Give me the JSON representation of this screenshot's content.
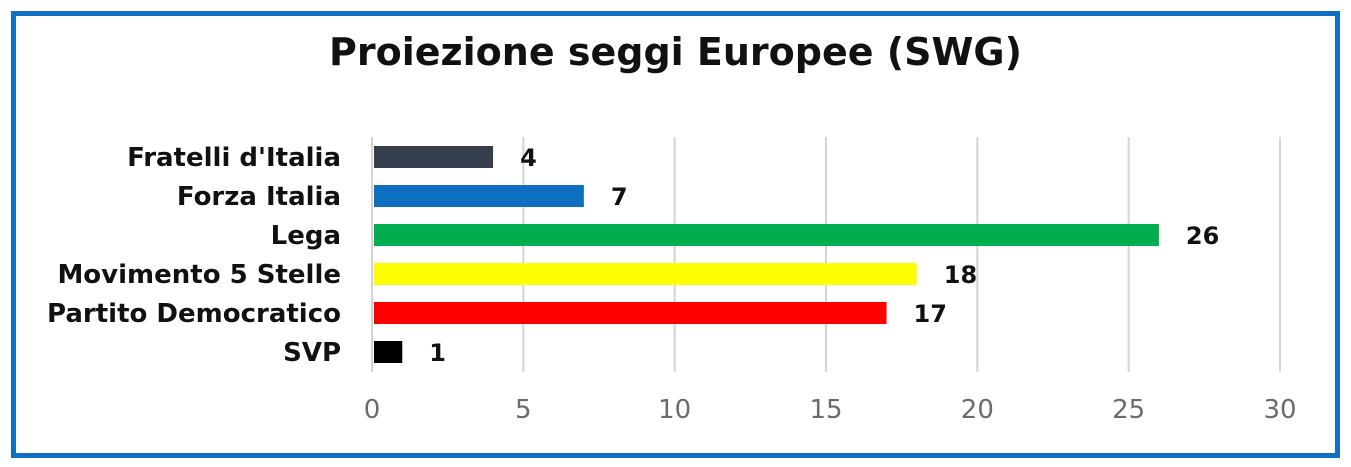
{
  "chart_data": {
    "type": "bar",
    "orientation": "horizontal",
    "title": "Proiezione seggi Europee (SWG)",
    "xlabel": "",
    "ylabel": "",
    "categories": [
      "Fratelli d'Italia",
      "Forza Italia",
      "Lega",
      "Movimento 5 Stelle",
      "Partito Democratico",
      "SVP"
    ],
    "values": [
      4,
      7,
      26,
      18,
      17,
      1
    ],
    "colors": [
      "#353e4c",
      "#0e6fc1",
      "#00ae4f",
      "#fefe00",
      "#fe0000",
      "#000000"
    ],
    "xlim": [
      0,
      30
    ],
    "xticks": [
      0,
      5,
      10,
      15,
      20,
      25,
      30
    ],
    "grid": true,
    "legend": "none"
  },
  "colors": {
    "frame": "#0f6fc0",
    "gridline": "#d4d4d4",
    "tick_text": "#6b6b6b"
  }
}
